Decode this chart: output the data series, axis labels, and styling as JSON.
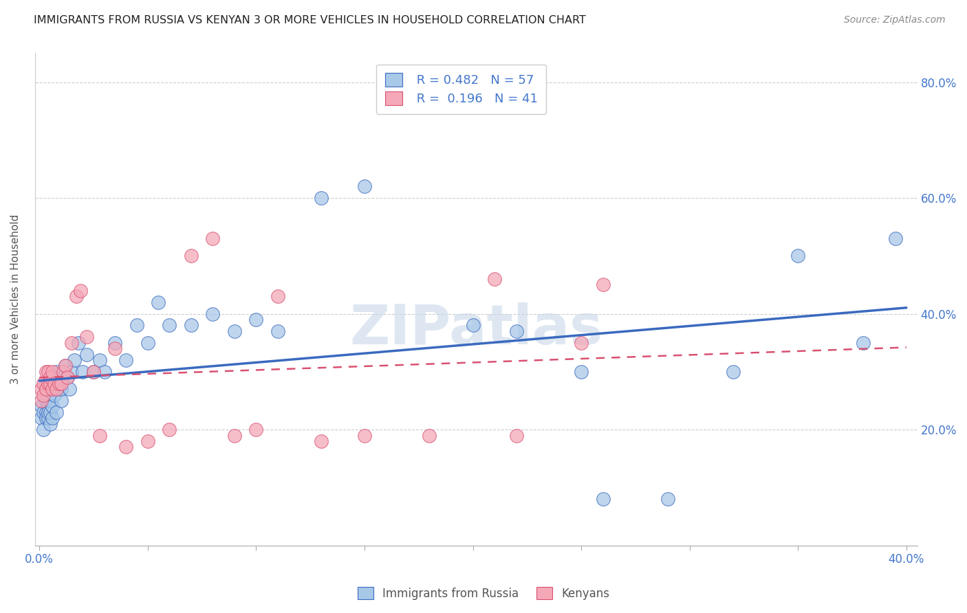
{
  "title": "IMMIGRANTS FROM RUSSIA VS KENYAN 3 OR MORE VEHICLES IN HOUSEHOLD CORRELATION CHART",
  "source": "Source: ZipAtlas.com",
  "ylabel": "3 or more Vehicles in Household",
  "xlabel_russia": "Immigrants from Russia",
  "xlabel_kenya": "Kenyans",
  "xlim": [
    -0.002,
    0.405
  ],
  "ylim": [
    0.0,
    0.85
  ],
  "xticks": [
    0.0,
    0.05,
    0.1,
    0.15,
    0.2,
    0.25,
    0.3,
    0.35,
    0.4
  ],
  "xtick_labels_show": [
    "0.0%",
    "",
    "",
    "",
    "",
    "",
    "",
    "",
    "40.0%"
  ],
  "yticks": [
    0.2,
    0.4,
    0.6,
    0.8
  ],
  "ytick_labels": [
    "20.0%",
    "40.0%",
    "60.0%",
    "80.0%"
  ],
  "legend_R_russia": "0.482",
  "legend_N_russia": "57",
  "legend_R_kenya": "0.196",
  "legend_N_kenya": "41",
  "color_russia": "#a8c8e8",
  "color_kenya": "#f4a8b8",
  "line_color_russia": "#3a6abf",
  "line_color_kenya": "#d85070",
  "watermark_color": "#c8d8e8",
  "russia_x": [
    0.001,
    0.001,
    0.002,
    0.002,
    0.003,
    0.003,
    0.003,
    0.004,
    0.004,
    0.004,
    0.005,
    0.005,
    0.005,
    0.006,
    0.006,
    0.007,
    0.007,
    0.008,
    0.008,
    0.009,
    0.009,
    0.01,
    0.01,
    0.011,
    0.012,
    0.013,
    0.014,
    0.015,
    0.016,
    0.018,
    0.02,
    0.022,
    0.025,
    0.028,
    0.03,
    0.035,
    0.04,
    0.045,
    0.05,
    0.055,
    0.06,
    0.07,
    0.08,
    0.09,
    0.1,
    0.11,
    0.13,
    0.15,
    0.2,
    0.22,
    0.26,
    0.29,
    0.32,
    0.35,
    0.38,
    0.395,
    0.25
  ],
  "russia_y": [
    0.22,
    0.24,
    0.23,
    0.2,
    0.25,
    0.23,
    0.22,
    0.24,
    0.22,
    0.23,
    0.21,
    0.23,
    0.25,
    0.22,
    0.24,
    0.26,
    0.28,
    0.3,
    0.23,
    0.27,
    0.29,
    0.25,
    0.27,
    0.29,
    0.31,
    0.29,
    0.27,
    0.3,
    0.32,
    0.35,
    0.3,
    0.33,
    0.3,
    0.32,
    0.3,
    0.35,
    0.32,
    0.38,
    0.35,
    0.42,
    0.38,
    0.38,
    0.4,
    0.37,
    0.39,
    0.37,
    0.6,
    0.62,
    0.38,
    0.37,
    0.08,
    0.08,
    0.3,
    0.5,
    0.35,
    0.53,
    0.3
  ],
  "kenya_x": [
    0.001,
    0.001,
    0.002,
    0.002,
    0.003,
    0.003,
    0.004,
    0.004,
    0.005,
    0.005,
    0.006,
    0.006,
    0.007,
    0.008,
    0.009,
    0.01,
    0.011,
    0.012,
    0.013,
    0.015,
    0.017,
    0.019,
    0.022,
    0.025,
    0.028,
    0.035,
    0.04,
    0.05,
    0.06,
    0.07,
    0.08,
    0.09,
    0.1,
    0.11,
    0.13,
    0.15,
    0.18,
    0.21,
    0.25,
    0.26,
    0.22
  ],
  "kenya_y": [
    0.27,
    0.25,
    0.28,
    0.26,
    0.3,
    0.27,
    0.3,
    0.28,
    0.28,
    0.29,
    0.27,
    0.3,
    0.28,
    0.27,
    0.28,
    0.28,
    0.3,
    0.31,
    0.29,
    0.35,
    0.43,
    0.44,
    0.36,
    0.3,
    0.19,
    0.34,
    0.17,
    0.18,
    0.2,
    0.5,
    0.53,
    0.19,
    0.2,
    0.43,
    0.18,
    0.19,
    0.19,
    0.46,
    0.35,
    0.45,
    0.19
  ]
}
